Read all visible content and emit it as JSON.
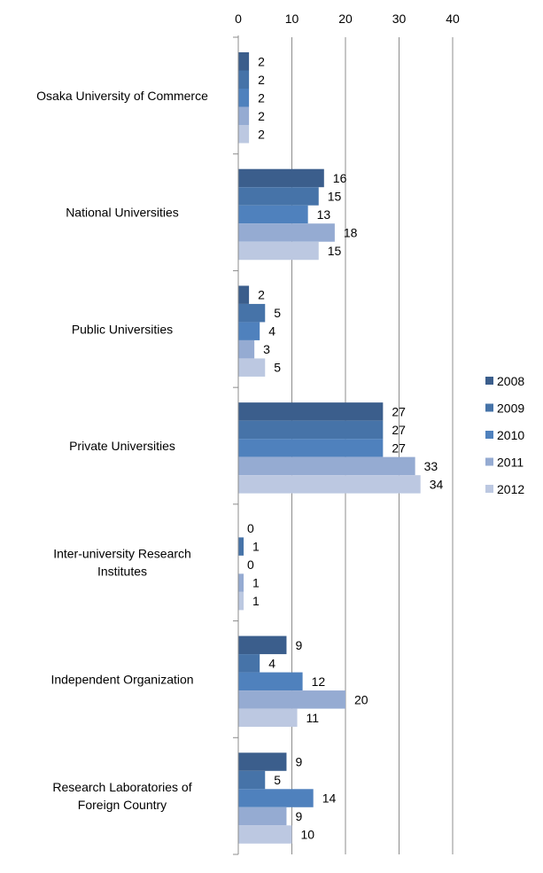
{
  "chart_data": {
    "type": "bar",
    "orientation": "horizontal",
    "categories": [
      "Osaka University of Commerce",
      "National Universities",
      "Public Universities",
      "Private Universities",
      "Inter-university Research Institutes",
      "Independent Organization",
      "Research Laboratories of Foreign Country"
    ],
    "series": [
      {
        "name": "2008",
        "values": [
          2,
          16,
          2,
          27,
          0,
          9,
          9
        ]
      },
      {
        "name": "2009",
        "values": [
          2,
          15,
          5,
          27,
          1,
          4,
          5
        ]
      },
      {
        "name": "2010",
        "values": [
          2,
          13,
          4,
          27,
          0,
          12,
          14
        ]
      },
      {
        "name": "2011",
        "values": [
          2,
          18,
          3,
          33,
          1,
          20,
          9
        ]
      },
      {
        "name": "2012",
        "values": [
          2,
          15,
          5,
          34,
          1,
          11,
          10
        ]
      }
    ],
    "series_colors": [
      "#3b5e8c",
      "#4673a8",
      "#4f81bd",
      "#95abd2",
      "#bcc8e1"
    ],
    "xlim": [
      0,
      40
    ],
    "xticks": [
      0,
      10,
      20,
      30,
      40
    ],
    "x_axis_position": "top",
    "gridlines": true,
    "data_labels": true,
    "legend_position": "right",
    "title": "",
    "xlabel": "",
    "ylabel": ""
  }
}
